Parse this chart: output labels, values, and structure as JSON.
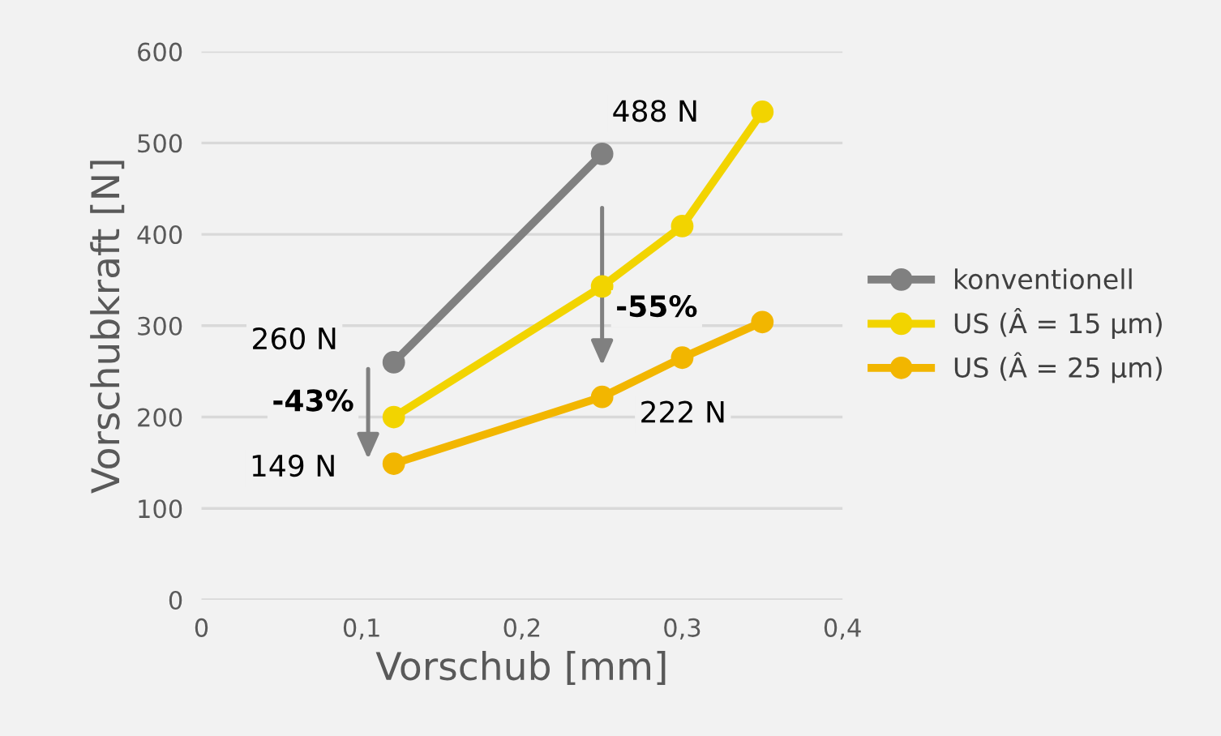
{
  "chart_data": {
    "type": "line",
    "xlabel": "Vorschub [mm]",
    "ylabel": "Vorschubkraft [N]",
    "xlim": [
      0,
      0.4
    ],
    "xticks": [
      {
        "value": 0,
        "label": "0"
      },
      {
        "value": 0.1,
        "label": "0,1"
      },
      {
        "value": 0.2,
        "label": "0,2"
      },
      {
        "value": 0.3,
        "label": "0,3"
      },
      {
        "value": 0.4,
        "label": "0,4"
      }
    ],
    "ylim": [
      0,
      600
    ],
    "yticks": [
      0,
      100,
      200,
      300,
      400,
      500,
      600
    ],
    "grid": "y",
    "legend": "right",
    "marker": "circle",
    "line_style": "solid",
    "series": [
      {
        "name": "konventionell",
        "color": "#808080",
        "x": [
          0.12,
          0.25
        ],
        "values": [
          260,
          488
        ]
      },
      {
        "name": "US (Â = 15 µm)",
        "color": "#f2d400",
        "x": [
          0.12,
          0.25,
          0.3,
          0.35
        ],
        "values": [
          200,
          343,
          409,
          534
        ]
      },
      {
        "name": "US (Â = 25 µm)",
        "color": "#f2b600",
        "x": [
          0.12,
          0.25,
          0.3,
          0.35
        ],
        "values": [
          149,
          222,
          265,
          304
        ]
      }
    ],
    "annotations": [
      "260 N",
      "488 N",
      "149 N",
      "222 N",
      "-43%",
      "-55%"
    ]
  }
}
